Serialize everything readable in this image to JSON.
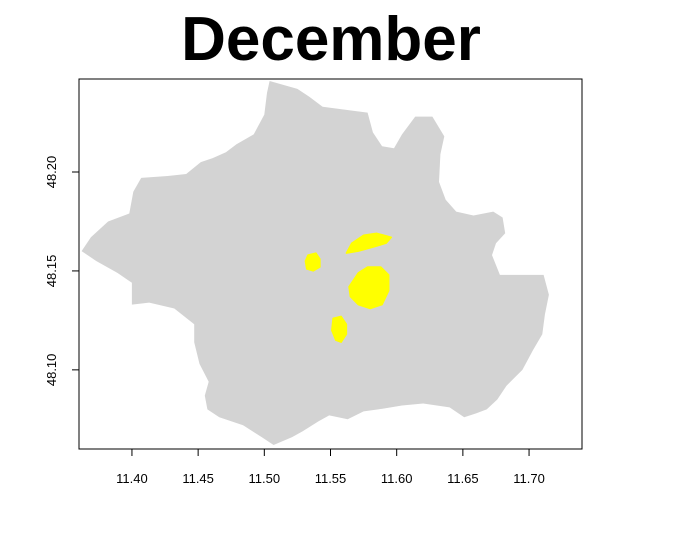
{
  "title": "December",
  "colors": {
    "region": "#d3d3d3",
    "highlight": "#ffff00",
    "frame": "#000000"
  },
  "chart_data": {
    "type": "map",
    "title": "December",
    "xlim": [
      11.36,
      11.74
    ],
    "ylim": [
      48.06,
      48.247
    ],
    "x_ticks": [
      {
        "value": 11.4,
        "label": "11.40"
      },
      {
        "value": 11.45,
        "label": "11.45"
      },
      {
        "value": 11.5,
        "label": "11.50"
      },
      {
        "value": 11.55,
        "label": "11.55"
      },
      {
        "value": 11.6,
        "label": "11.60"
      },
      {
        "value": 11.65,
        "label": "11.65"
      },
      {
        "value": 11.7,
        "label": "11.70"
      }
    ],
    "y_ticks": [
      {
        "value": 48.1,
        "label": "48.10"
      },
      {
        "value": 48.15,
        "label": "48.15"
      },
      {
        "value": 48.2,
        "label": "48.20"
      }
    ],
    "region": {
      "name": "boundary",
      "outline": [
        [
          11.504,
          48.246
        ],
        [
          11.525,
          48.242
        ],
        [
          11.534,
          48.238
        ],
        [
          11.544,
          48.233
        ],
        [
          11.567,
          48.231
        ],
        [
          11.578,
          48.23
        ],
        [
          11.582,
          48.22
        ],
        [
          11.589,
          48.213
        ],
        [
          11.598,
          48.212
        ],
        [
          11.604,
          48.219
        ],
        [
          11.614,
          48.228
        ],
        [
          11.627,
          48.228
        ],
        [
          11.636,
          48.218
        ],
        [
          11.633,
          48.209
        ],
        [
          11.632,
          48.195
        ],
        [
          11.637,
          48.186
        ],
        [
          11.645,
          48.18
        ],
        [
          11.658,
          48.178
        ],
        [
          11.673,
          48.18
        ],
        [
          11.68,
          48.177
        ],
        [
          11.682,
          48.169
        ],
        [
          11.675,
          48.164
        ],
        [
          11.672,
          48.158
        ],
        [
          11.678,
          48.148
        ],
        [
          11.696,
          48.148
        ],
        [
          11.711,
          48.148
        ],
        [
          11.715,
          48.138
        ],
        [
          11.712,
          48.128
        ],
        [
          11.71,
          48.118
        ],
        [
          11.703,
          48.11
        ],
        [
          11.695,
          48.1
        ],
        [
          11.683,
          48.092
        ],
        [
          11.676,
          48.085
        ],
        [
          11.668,
          48.08
        ],
        [
          11.66,
          48.078
        ],
        [
          11.651,
          48.076
        ],
        [
          11.64,
          48.081
        ],
        [
          11.62,
          48.083
        ],
        [
          11.604,
          48.082
        ],
        [
          11.586,
          48.08
        ],
        [
          11.575,
          48.079
        ],
        [
          11.563,
          48.075
        ],
        [
          11.549,
          48.077
        ],
        [
          11.541,
          48.074
        ],
        [
          11.529,
          48.069
        ],
        [
          11.521,
          48.066
        ],
        [
          11.507,
          48.062
        ],
        [
          11.498,
          48.066
        ],
        [
          11.484,
          48.072
        ],
        [
          11.466,
          48.076
        ],
        [
          11.457,
          48.08
        ],
        [
          11.455,
          48.087
        ],
        [
          11.458,
          48.094
        ],
        [
          11.451,
          48.103
        ],
        [
          11.447,
          48.114
        ],
        [
          11.447,
          48.123
        ],
        [
          11.432,
          48.131
        ],
        [
          11.413,
          48.134
        ],
        [
          11.4,
          48.133
        ],
        [
          11.4,
          48.144
        ],
        [
          11.389,
          48.149
        ],
        [
          11.373,
          48.155
        ],
        [
          11.362,
          48.16
        ],
        [
          11.369,
          48.167
        ],
        [
          11.382,
          48.175
        ],
        [
          11.398,
          48.179
        ],
        [
          11.401,
          48.19
        ],
        [
          11.407,
          48.197
        ],
        [
          11.427,
          48.198
        ],
        [
          11.441,
          48.199
        ],
        [
          11.452,
          48.205
        ],
        [
          11.461,
          48.207
        ],
        [
          11.471,
          48.21
        ],
        [
          11.479,
          48.214
        ],
        [
          11.492,
          48.219
        ],
        [
          11.5,
          48.229
        ],
        [
          11.502,
          48.24
        ]
      ]
    },
    "highlights": [
      {
        "name": "area-west",
        "outline": [
          [
            11.531,
            48.155
          ],
          [
            11.533,
            48.158
          ],
          [
            11.539,
            48.159
          ],
          [
            11.542,
            48.156
          ],
          [
            11.542,
            48.152
          ],
          [
            11.537,
            48.15
          ],
          [
            11.532,
            48.151
          ]
        ]
      },
      {
        "name": "area-north",
        "outline": [
          [
            11.562,
            48.159
          ],
          [
            11.566,
            48.164
          ],
          [
            11.575,
            48.168
          ],
          [
            11.585,
            48.169
          ],
          [
            11.596,
            48.167
          ],
          [
            11.592,
            48.164
          ],
          [
            11.582,
            48.162
          ],
          [
            11.571,
            48.16
          ]
        ]
      },
      {
        "name": "area-central",
        "outline": [
          [
            11.571,
            48.149
          ],
          [
            11.578,
            48.152
          ],
          [
            11.588,
            48.152
          ],
          [
            11.594,
            48.148
          ],
          [
            11.594,
            48.14
          ],
          [
            11.589,
            48.133
          ],
          [
            11.58,
            48.131
          ],
          [
            11.571,
            48.133
          ],
          [
            11.565,
            48.137
          ],
          [
            11.564,
            48.142
          ]
        ]
      },
      {
        "name": "area-south",
        "outline": [
          [
            11.552,
            48.126
          ],
          [
            11.558,
            48.127
          ],
          [
            11.562,
            48.123
          ],
          [
            11.562,
            48.118
          ],
          [
            11.558,
            48.114
          ],
          [
            11.554,
            48.115
          ],
          [
            11.551,
            48.12
          ]
        ]
      }
    ]
  }
}
